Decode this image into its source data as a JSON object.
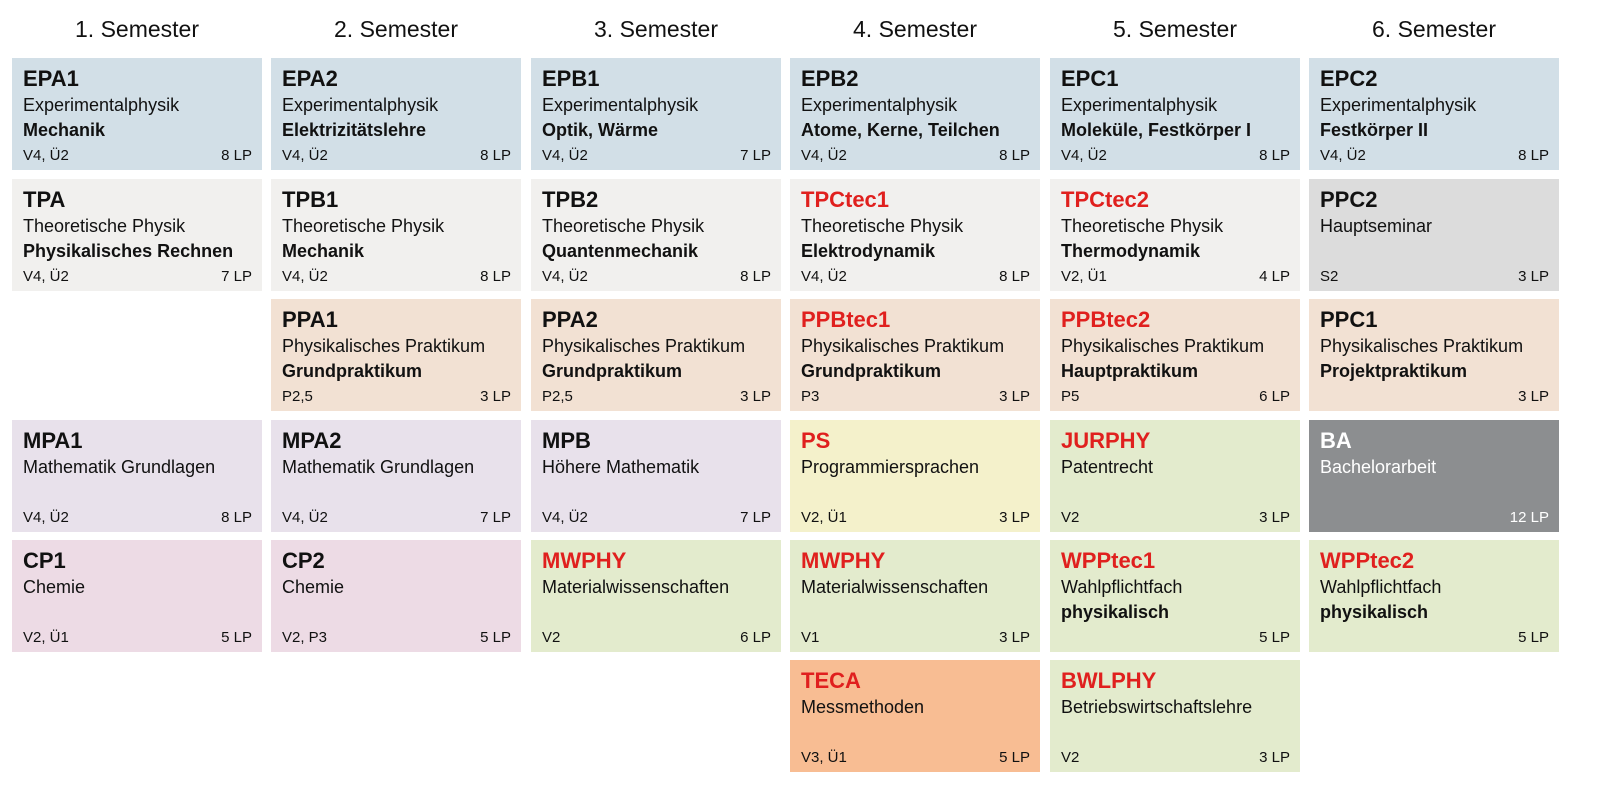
{
  "semesters": [
    "1. Semester",
    "2. Semester",
    "3. Semester",
    "4. Semester",
    "5. Semester",
    "6. Semester"
  ],
  "modules": {
    "epa1": {
      "code": "EPA1",
      "line1": "Experimentalphysik",
      "line2": "Mechanik",
      "hours": "V4, Ü2",
      "credits": "8 LP"
    },
    "epa2": {
      "code": "EPA2",
      "line1": "Experimentalphysik",
      "line2": "Elektrizitätslehre",
      "hours": "V4, Ü2",
      "credits": "8 LP"
    },
    "epb1": {
      "code": "EPB1",
      "line1": "Experimentalphysik",
      "line2": "Optik, Wärme",
      "hours": "V4, Ü2",
      "credits": "7 LP"
    },
    "epb2": {
      "code": "EPB2",
      "line1": "Experimentalphysik",
      "line2": "Atome, Kerne, Teilchen",
      "hours": "V4, Ü2",
      "credits": "8 LP"
    },
    "epc1": {
      "code": "EPC1",
      "line1": "Experimentalphysik",
      "line2": "Moleküle, Festkörper I",
      "hours": "V4, Ü2",
      "credits": "8 LP"
    },
    "epc2": {
      "code": "EPC2",
      "line1": "Experimentalphysik",
      "line2": "Festkörper II",
      "hours": "V4, Ü2",
      "credits": "8 LP"
    },
    "tpa": {
      "code": "TPA",
      "line1": "Theoretische Physik",
      "line2": "Physikalisches Rechnen",
      "hours": "V4, Ü2",
      "credits": "7 LP"
    },
    "tpb1": {
      "code": "TPB1",
      "line1": "Theoretische Physik",
      "line2": "Mechanik",
      "hours": "V4, Ü2",
      "credits": "8 LP"
    },
    "tpb2": {
      "code": "TPB2",
      "line1": "Theoretische Physik",
      "line2": "Quantenmechanik",
      "hours": "V4, Ü2",
      "credits": "8 LP"
    },
    "tpctec1": {
      "code": "TPCtec1",
      "line1": "Theoretische Physik",
      "line2": "Elektrodynamik",
      "hours": "V4, Ü2",
      "credits": "8 LP"
    },
    "tpctec2": {
      "code": "TPCtec2",
      "line1": "Theoretische Physik",
      "line2": "Thermodynamik",
      "hours": "V2, Ü1",
      "credits": "4 LP"
    },
    "ppc2": {
      "code": "PPC2",
      "line1": "Hauptseminar",
      "line2": "",
      "hours": "S2",
      "credits": "3 LP"
    },
    "ppa1": {
      "code": "PPA1",
      "line1": "Physikalisches Praktikum",
      "line2": "Grundpraktikum",
      "hours": "P2,5",
      "credits": "3 LP"
    },
    "ppa2": {
      "code": "PPA2",
      "line1": "Physikalisches Praktikum",
      "line2": "Grundpraktikum",
      "hours": "P2,5",
      "credits": "3 LP"
    },
    "ppbtec1": {
      "code": "PPBtec1",
      "line1": "Physikalisches Praktikum",
      "line2": "Grundpraktikum",
      "hours": "P3",
      "credits": "3 LP"
    },
    "ppbtec2": {
      "code": "PPBtec2",
      "line1": "Physikalisches Praktikum",
      "line2": "Hauptpraktikum",
      "hours": "P5",
      "credits": "6 LP"
    },
    "ppc1": {
      "code": "PPC1",
      "line1": "Physikalisches Praktikum",
      "line2": "Projektpraktikum",
      "hours": "",
      "credits": "3 LP"
    },
    "mpa1": {
      "code": "MPA1",
      "line1": "Mathematik Grundlagen",
      "line2": "",
      "hours": "V4, Ü2",
      "credits": "8 LP"
    },
    "mpa2": {
      "code": "MPA2",
      "line1": "Mathematik Grundlagen",
      "line2": "",
      "hours": "V4, Ü2",
      "credits": "7 LP"
    },
    "mpb": {
      "code": "MPB",
      "line1": "Höhere Mathematik",
      "line2": "",
      "hours": "V4, Ü2",
      "credits": "7 LP"
    },
    "ps": {
      "code": "PS",
      "line1": "Programmiersprachen",
      "line2": "",
      "hours": "V2, Ü1",
      "credits": "3 LP"
    },
    "jurphy": {
      "code": "JURPHY",
      "line1": "Patentrecht",
      "line2": "",
      "hours": "V2",
      "credits": "3 LP"
    },
    "ba": {
      "code": "BA",
      "line1": "Bachelorarbeit",
      "line2": "",
      "hours": "",
      "credits": "12 LP"
    },
    "cp1": {
      "code": "CP1",
      "line1": "Chemie",
      "line2": "",
      "hours": "V2, Ü1",
      "credits": "5 LP"
    },
    "cp2": {
      "code": "CP2",
      "line1": "Chemie",
      "line2": "",
      "hours": "V2, P3",
      "credits": "5 LP"
    },
    "mwphy3": {
      "code": "MWPHY",
      "line1": "Materialwissenschaften",
      "line2": "",
      "hours": "V2",
      "credits": "6 LP"
    },
    "mwphy4": {
      "code": "MWPHY",
      "line1": "Materialwissenschaften",
      "line2": "",
      "hours": "V1",
      "credits": "3 LP"
    },
    "wpptec1": {
      "code": "WPPtec1",
      "line1": "Wahlpflichtfach",
      "line2": "physikalisch",
      "hours": "",
      "credits": "5 LP"
    },
    "wpptec2": {
      "code": "WPPtec2",
      "line1": "Wahlpflichtfach",
      "line2": "physikalisch",
      "hours": "",
      "credits": "5 LP"
    },
    "teca": {
      "code": "TECA",
      "line1": "Messmethoden",
      "line2": "",
      "hours": "V3, Ü1",
      "credits": "5 LP"
    },
    "bwlphy": {
      "code": "BWLPHY",
      "line1": "Betriebswirtschaftslehre",
      "line2": "",
      "hours": "V2",
      "credits": "3 LP"
    }
  },
  "colors": {
    "experimental": "#d2dfe7",
    "theoretical": "#f1f0ee",
    "lab": "#f2e1d3",
    "math": "#e8e1eb",
    "chemistry": "#eddbe5",
    "elective": "#e3ebcd",
    "programming": "#f4f1cb",
    "measurement": "#f8bd93",
    "seminar": "#dcdcdc",
    "thesis": "#8c8e90",
    "tec_code_red": "#e0201e"
  }
}
